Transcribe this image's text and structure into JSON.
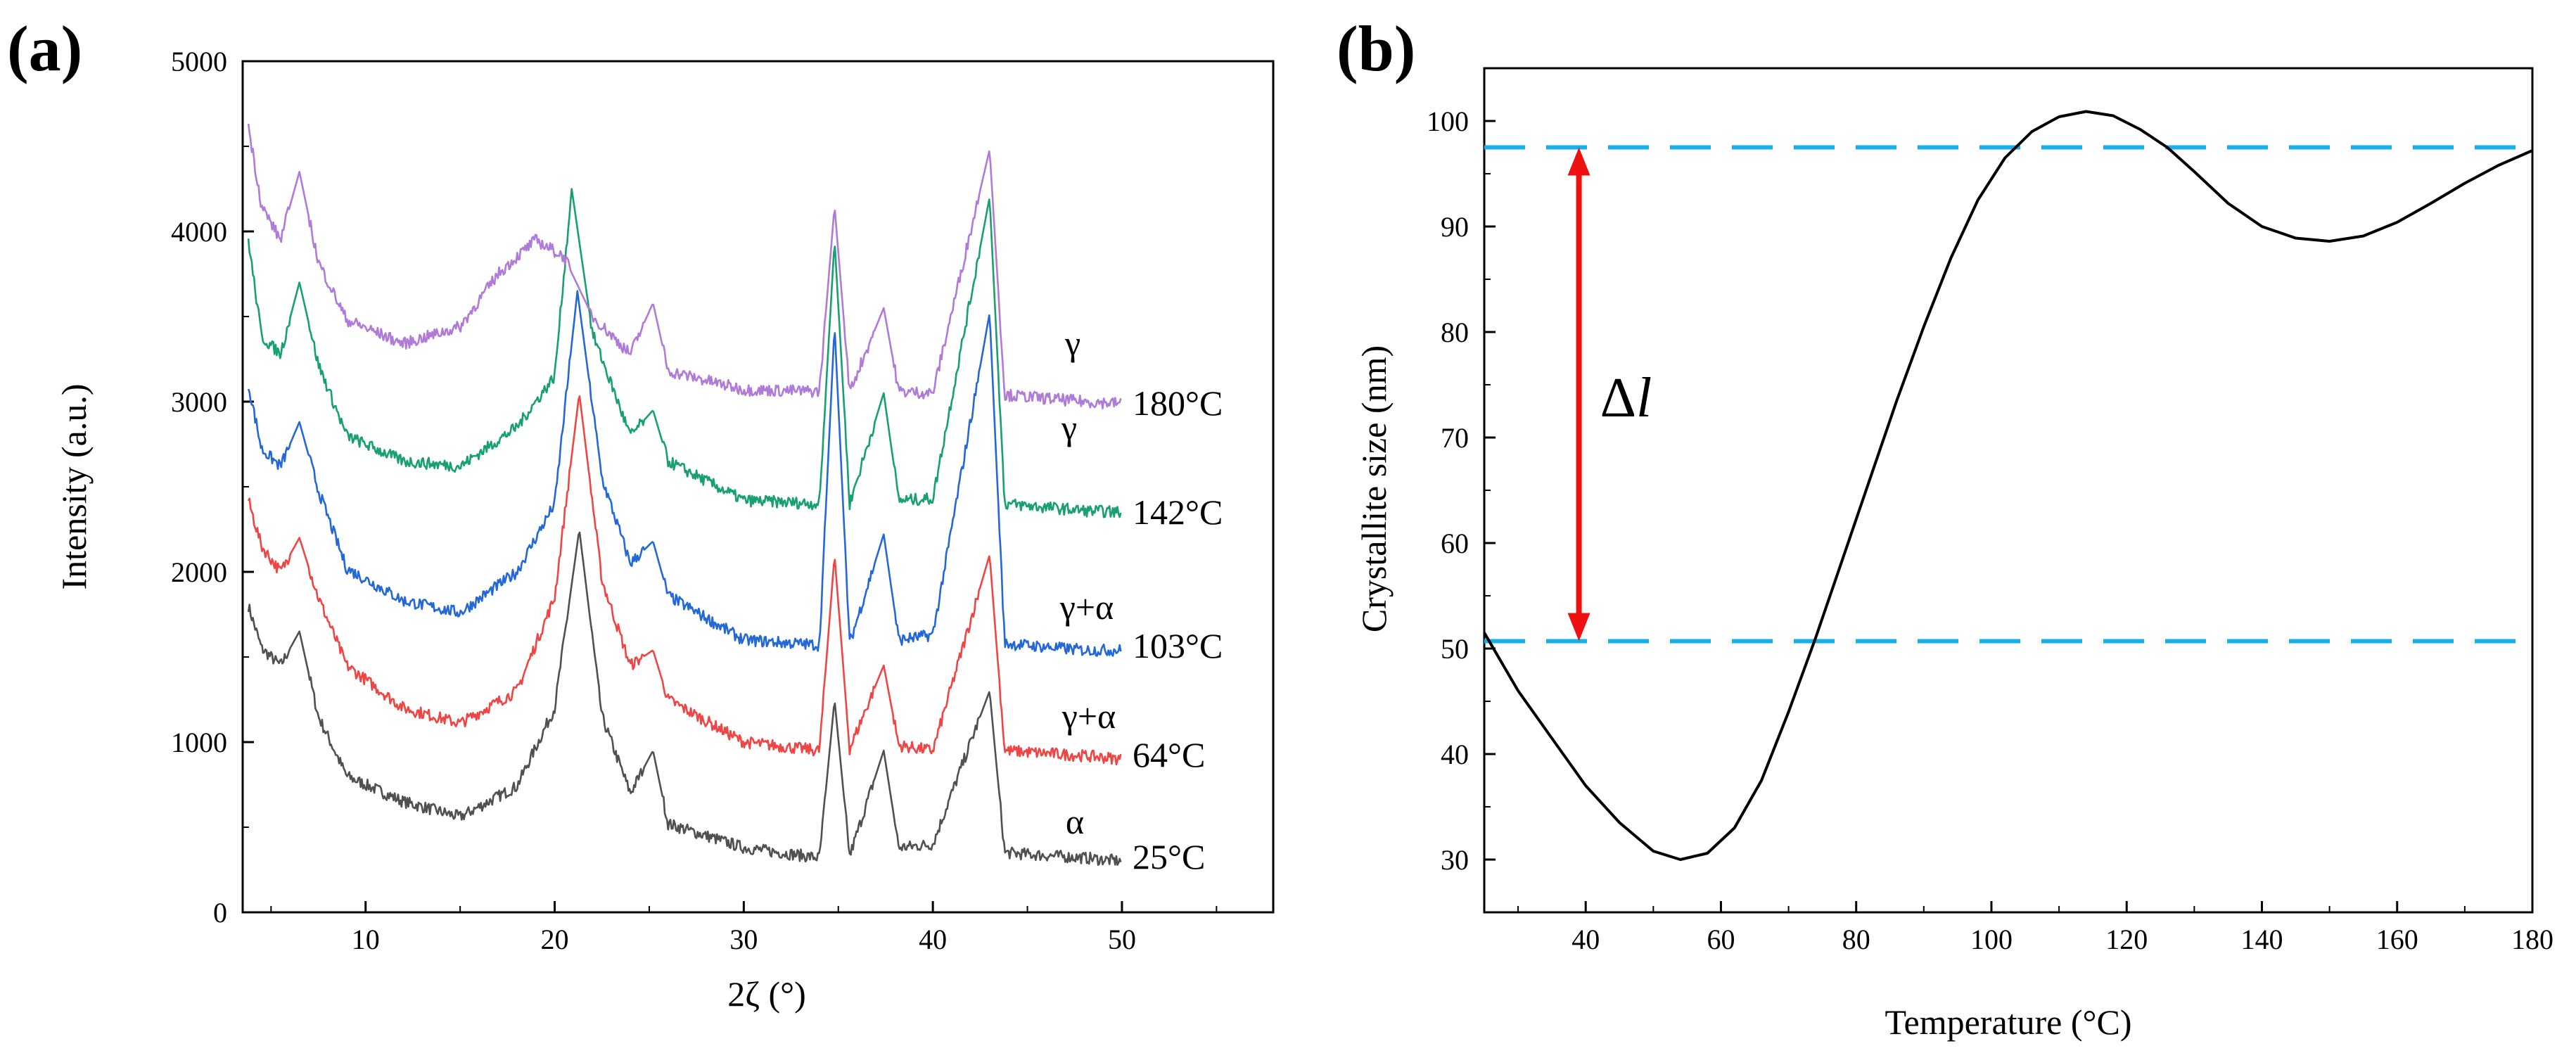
{
  "figure": {
    "panel_a_label": "(a)",
    "panel_b_label": "(b)"
  },
  "chart_data": [
    {
      "type": "line",
      "panel": "(a)",
      "xlabel": "2ζ (°)",
      "ylabel": "Intensity (a.u.)",
      "xlim": [
        3.5,
        58
      ],
      "ylim": [
        0,
        5000
      ],
      "xticks": [
        10,
        20,
        30,
        40,
        50
      ],
      "yticks": [
        0,
        1000,
        2000,
        3000,
        4000,
        5000
      ],
      "grid": false,
      "peak_positions": [
        6.5,
        21.3,
        25.2,
        34.8,
        37.4,
        43.0
      ],
      "series": [
        {
          "name": "25°C",
          "phase": "α",
          "color": "#505050",
          "offset": 300,
          "points": [
            [
              3.8,
              1800
            ],
            [
              4.5,
              1550
            ],
            [
              5.5,
              1450
            ],
            [
              6.5,
              1650
            ],
            [
              7.5,
              1150
            ],
            [
              9,
              800
            ],
            [
              12,
              650
            ],
            [
              15,
              560
            ],
            [
              18,
              740
            ],
            [
              20,
              1200
            ],
            [
              21.3,
              2250
            ],
            [
              22.5,
              1150
            ],
            [
              24,
              700
            ],
            [
              25.2,
              950
            ],
            [
              26,
              520
            ],
            [
              30,
              380
            ],
            [
              34,
              320
            ],
            [
              34.8,
              1250
            ],
            [
              35.6,
              330
            ],
            [
              37.4,
              950
            ],
            [
              38.2,
              380
            ],
            [
              40,
              400
            ],
            [
              43,
              1300
            ],
            [
              43.8,
              350
            ],
            [
              48,
              320
            ],
            [
              50,
              300
            ]
          ]
        },
        {
          "name": "64°C",
          "phase": "γ+α",
          "color": "#f04545",
          "offset": 900,
          "points": [
            [
              3.8,
              2420
            ],
            [
              4.5,
              2150
            ],
            [
              5.5,
              2000
            ],
            [
              6.5,
              2200
            ],
            [
              7.5,
              1850
            ],
            [
              9,
              1450
            ],
            [
              12,
              1200
            ],
            [
              15,
              1110
            ],
            [
              18,
              1300
            ],
            [
              20,
              1850
            ],
            [
              21.3,
              3050
            ],
            [
              22.5,
              1950
            ],
            [
              24,
              1450
            ],
            [
              25.2,
              1540
            ],
            [
              26,
              1250
            ],
            [
              30,
              1000
            ],
            [
              34,
              950
            ],
            [
              34.8,
              2100
            ],
            [
              35.6,
              960
            ],
            [
              37.4,
              1450
            ],
            [
              38.2,
              980
            ],
            [
              40,
              950
            ],
            [
              43,
              2100
            ],
            [
              43.8,
              950
            ],
            [
              48,
              920
            ],
            [
              50,
              900
            ]
          ]
        },
        {
          "name": "103°C",
          "phase": "γ+α",
          "color": "#2468d8",
          "offset": 1550,
          "points": [
            [
              3.8,
              3100
            ],
            [
              4.5,
              2720
            ],
            [
              5.5,
              2620
            ],
            [
              6.5,
              2880
            ],
            [
              7.5,
              2480
            ],
            [
              9,
              2020
            ],
            [
              12,
              1830
            ],
            [
              15,
              1760
            ],
            [
              18,
              2000
            ],
            [
              20,
              2400
            ],
            [
              21.2,
              3650
            ],
            [
              22.5,
              2550
            ],
            [
              24,
              2050
            ],
            [
              25.2,
              2180
            ],
            [
              26,
              1860
            ],
            [
              30,
              1600
            ],
            [
              34,
              1570
            ],
            [
              34.8,
              3450
            ],
            [
              35.6,
              1580
            ],
            [
              37.4,
              2220
            ],
            [
              38.2,
              1600
            ],
            [
              40,
              1630
            ],
            [
              43,
              3520
            ],
            [
              43.8,
              1580
            ],
            [
              48,
              1540
            ],
            [
              50,
              1540
            ]
          ]
        },
        {
          "name": "142°C",
          "phase": "γ",
          "color": "#18a070",
          "offset": 2350,
          "points": [
            [
              3.8,
              3950
            ],
            [
              4.5,
              3380
            ],
            [
              5.5,
              3280
            ],
            [
              6.5,
              3700
            ],
            [
              7.5,
              3220
            ],
            [
              9,
              2800
            ],
            [
              12,
              2650
            ],
            [
              15,
              2620
            ],
            [
              18,
              2850
            ],
            [
              20,
              3150
            ],
            [
              20.9,
              4250
            ],
            [
              22,
              3400
            ],
            [
              24,
              2800
            ],
            [
              25.2,
              2950
            ],
            [
              26,
              2650
            ],
            [
              30,
              2420
            ],
            [
              34,
              2400
            ],
            [
              34.8,
              3950
            ],
            [
              35.6,
              2400
            ],
            [
              37.4,
              3050
            ],
            [
              38.2,
              2420
            ],
            [
              40,
              2430
            ],
            [
              43,
              4200
            ],
            [
              43.8,
              2400
            ],
            [
              48,
              2360
            ],
            [
              50,
              2350
            ]
          ]
        },
        {
          "name": "180°C",
          "phase": "γ",
          "color": "#b07ad8",
          "offset": 3000,
          "points": [
            [
              3.8,
              4620
            ],
            [
              4.5,
              4150
            ],
            [
              5.5,
              3950
            ],
            [
              6.5,
              4350
            ],
            [
              7.5,
              3820
            ],
            [
              9,
              3480
            ],
            [
              12,
              3340
            ],
            [
              15,
              3440
            ],
            [
              17,
              3750
            ],
            [
              19,
              3950
            ],
            [
              20.5,
              3850
            ],
            [
              22,
              3500
            ],
            [
              24,
              3280
            ],
            [
              25.2,
              3580
            ],
            [
              26,
              3180
            ],
            [
              30,
              3070
            ],
            [
              34,
              3060
            ],
            [
              34.8,
              4150
            ],
            [
              35.6,
              3060
            ],
            [
              37.4,
              3550
            ],
            [
              38.2,
              3060
            ],
            [
              40,
              3050
            ],
            [
              43,
              4480
            ],
            [
              43.8,
              3040
            ],
            [
              48,
              3000
            ],
            [
              50,
              2990
            ]
          ]
        }
      ]
    },
    {
      "type": "line",
      "panel": "(b)",
      "xlabel": "Temperature (°C)",
      "ylabel": "Crystallite size (nm)",
      "xlim": [
        25,
        180
      ],
      "ylim": [
        25,
        105
      ],
      "xticks": [
        40,
        60,
        80,
        100,
        120,
        140,
        160,
        180
      ],
      "yticks": [
        30,
        40,
        50,
        60,
        70,
        80,
        90,
        100
      ],
      "grid": false,
      "series": [
        {
          "name": "Crystallite size",
          "color": "#000000",
          "points": [
            [
              25,
              51.5
            ],
            [
              30,
              46
            ],
            [
              35,
              41.5
            ],
            [
              40,
              37
            ],
            [
              45,
              33.5
            ],
            [
              50,
              30.8
            ],
            [
              54,
              30
            ],
            [
              58,
              30.6
            ],
            [
              62,
              33
            ],
            [
              66,
              37.5
            ],
            [
              70,
              44
            ],
            [
              74,
              51
            ],
            [
              78,
              58.5
            ],
            [
              82,
              66
            ],
            [
              86,
              73.5
            ],
            [
              90,
              80.5
            ],
            [
              94,
              87
            ],
            [
              98,
              92.5
            ],
            [
              102,
              96.5
            ],
            [
              106,
              99
            ],
            [
              110,
              100.4
            ],
            [
              114,
              100.9
            ],
            [
              118,
              100.5
            ],
            [
              122,
              99.2
            ],
            [
              126,
              97.5
            ],
            [
              130,
              95.2
            ],
            [
              135,
              92.2
            ],
            [
              140,
              90
            ],
            [
              145,
              88.9
            ],
            [
              150,
              88.6
            ],
            [
              155,
              89.1
            ],
            [
              160,
              90.4
            ],
            [
              165,
              92.2
            ],
            [
              170,
              94.1
            ],
            [
              175,
              95.8
            ],
            [
              180,
              97.2
            ]
          ]
        }
      ],
      "reference_lines": [
        {
          "label": "upper",
          "value": 97.5,
          "color": "#18b0e8"
        },
        {
          "label": "lower",
          "value": 50.7,
          "color": "#18b0e8"
        }
      ],
      "annotation": {
        "text_main": "Δ",
        "text_italic": "l",
        "arrow_x": 39,
        "arrow_from": 50.7,
        "arrow_to": 97.5,
        "color": "#ee1111"
      }
    }
  ]
}
